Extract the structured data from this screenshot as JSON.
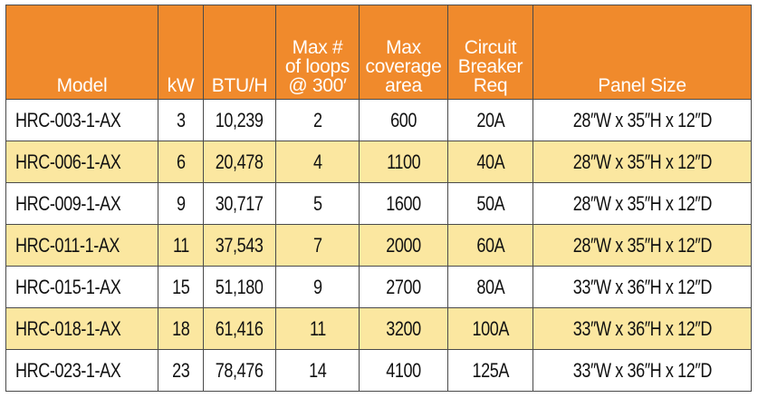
{
  "headers": {
    "model": [
      "Model"
    ],
    "kw": [
      "kW"
    ],
    "btu": [
      "BTU/H"
    ],
    "loops": [
      "Max #",
      "of loops",
      "@ 300′"
    ],
    "coverage": [
      "Max",
      "coverage",
      "area"
    ],
    "breaker": [
      "Circuit",
      "Breaker",
      "Req"
    ],
    "panel": [
      "Panel Size"
    ]
  },
  "rows": [
    {
      "model": "HRC-003-1-AX",
      "kw": "3",
      "btu": "10,239",
      "loops": "2",
      "coverage": "600",
      "breaker": "20A",
      "panel": "28″W x 35″H x 12″D"
    },
    {
      "model": "HRC-006-1-AX",
      "kw": "6",
      "btu": "20,478",
      "loops": "4",
      "coverage": "1100",
      "breaker": "40A",
      "panel": "28″W x 35″H x 12″D"
    },
    {
      "model": "HRC-009-1-AX",
      "kw": "9",
      "btu": "30,717",
      "loops": "5",
      "coverage": "1600",
      "breaker": "50A",
      "panel": "28″W x 35″H x 12″D"
    },
    {
      "model": "HRC-011-1-AX",
      "kw": "11",
      "btu": "37,543",
      "loops": "7",
      "coverage": "2000",
      "breaker": "60A",
      "panel": "28″W x 35″H x 12″D"
    },
    {
      "model": "HRC-015-1-AX",
      "kw": "15",
      "btu": "51,180",
      "loops": "9",
      "coverage": "2700",
      "breaker": "80A",
      "panel": "33″W x 36″H x 12″D"
    },
    {
      "model": "HRC-018-1-AX",
      "kw": "18",
      "btu": "61,416",
      "loops": "11",
      "coverage": "3200",
      "breaker": "100A",
      "panel": "33″W x 36″H x 12″D"
    },
    {
      "model": "HRC-023-1-AX",
      "kw": "23",
      "btu": "78,476",
      "loops": "14",
      "coverage": "4100",
      "breaker": "125A",
      "panel": "33″W x 36″H x 12″D"
    }
  ],
  "colors": {
    "header_bg": "#f08a2c",
    "header_text": "#ffffff",
    "alt_row_bg": "#fbe7a0",
    "row_bg": "#ffffff",
    "border": "#4a4a4a"
  }
}
